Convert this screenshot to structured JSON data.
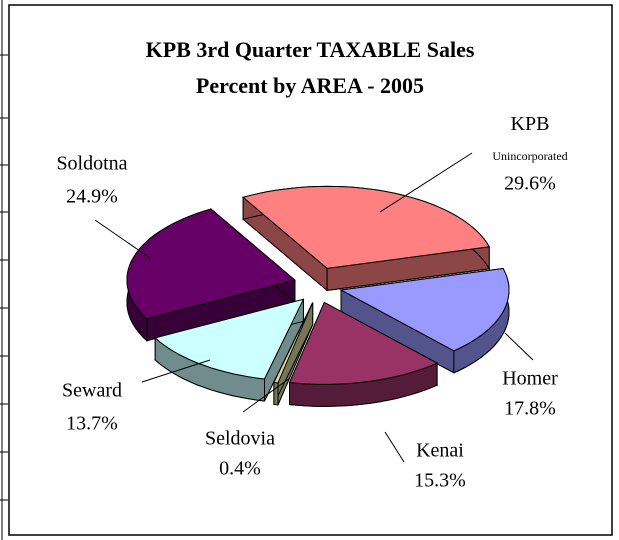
{
  "chart_data": {
    "type": "pie",
    "title": "KPB 3rd Quarter TAXABLE Sales",
    "subtitle": "Percent by AREA - 2005",
    "categories": [
      "KPB Unincorporated",
      "Homer",
      "Kenai",
      "Seldovia",
      "Seward",
      "Soldotna"
    ],
    "values": [
      29.6,
      17.8,
      15.3,
      0.4,
      13.7,
      24.9
    ],
    "value_labels": [
      "29.6%",
      "17.8%",
      "15.3%",
      "0.4%",
      "13.7%",
      "24.9%"
    ],
    "colors": [
      "#ff8080",
      "#9999ff",
      "#993366",
      "#d8d8a0",
      "#ccffff",
      "#660066"
    ]
  }
}
